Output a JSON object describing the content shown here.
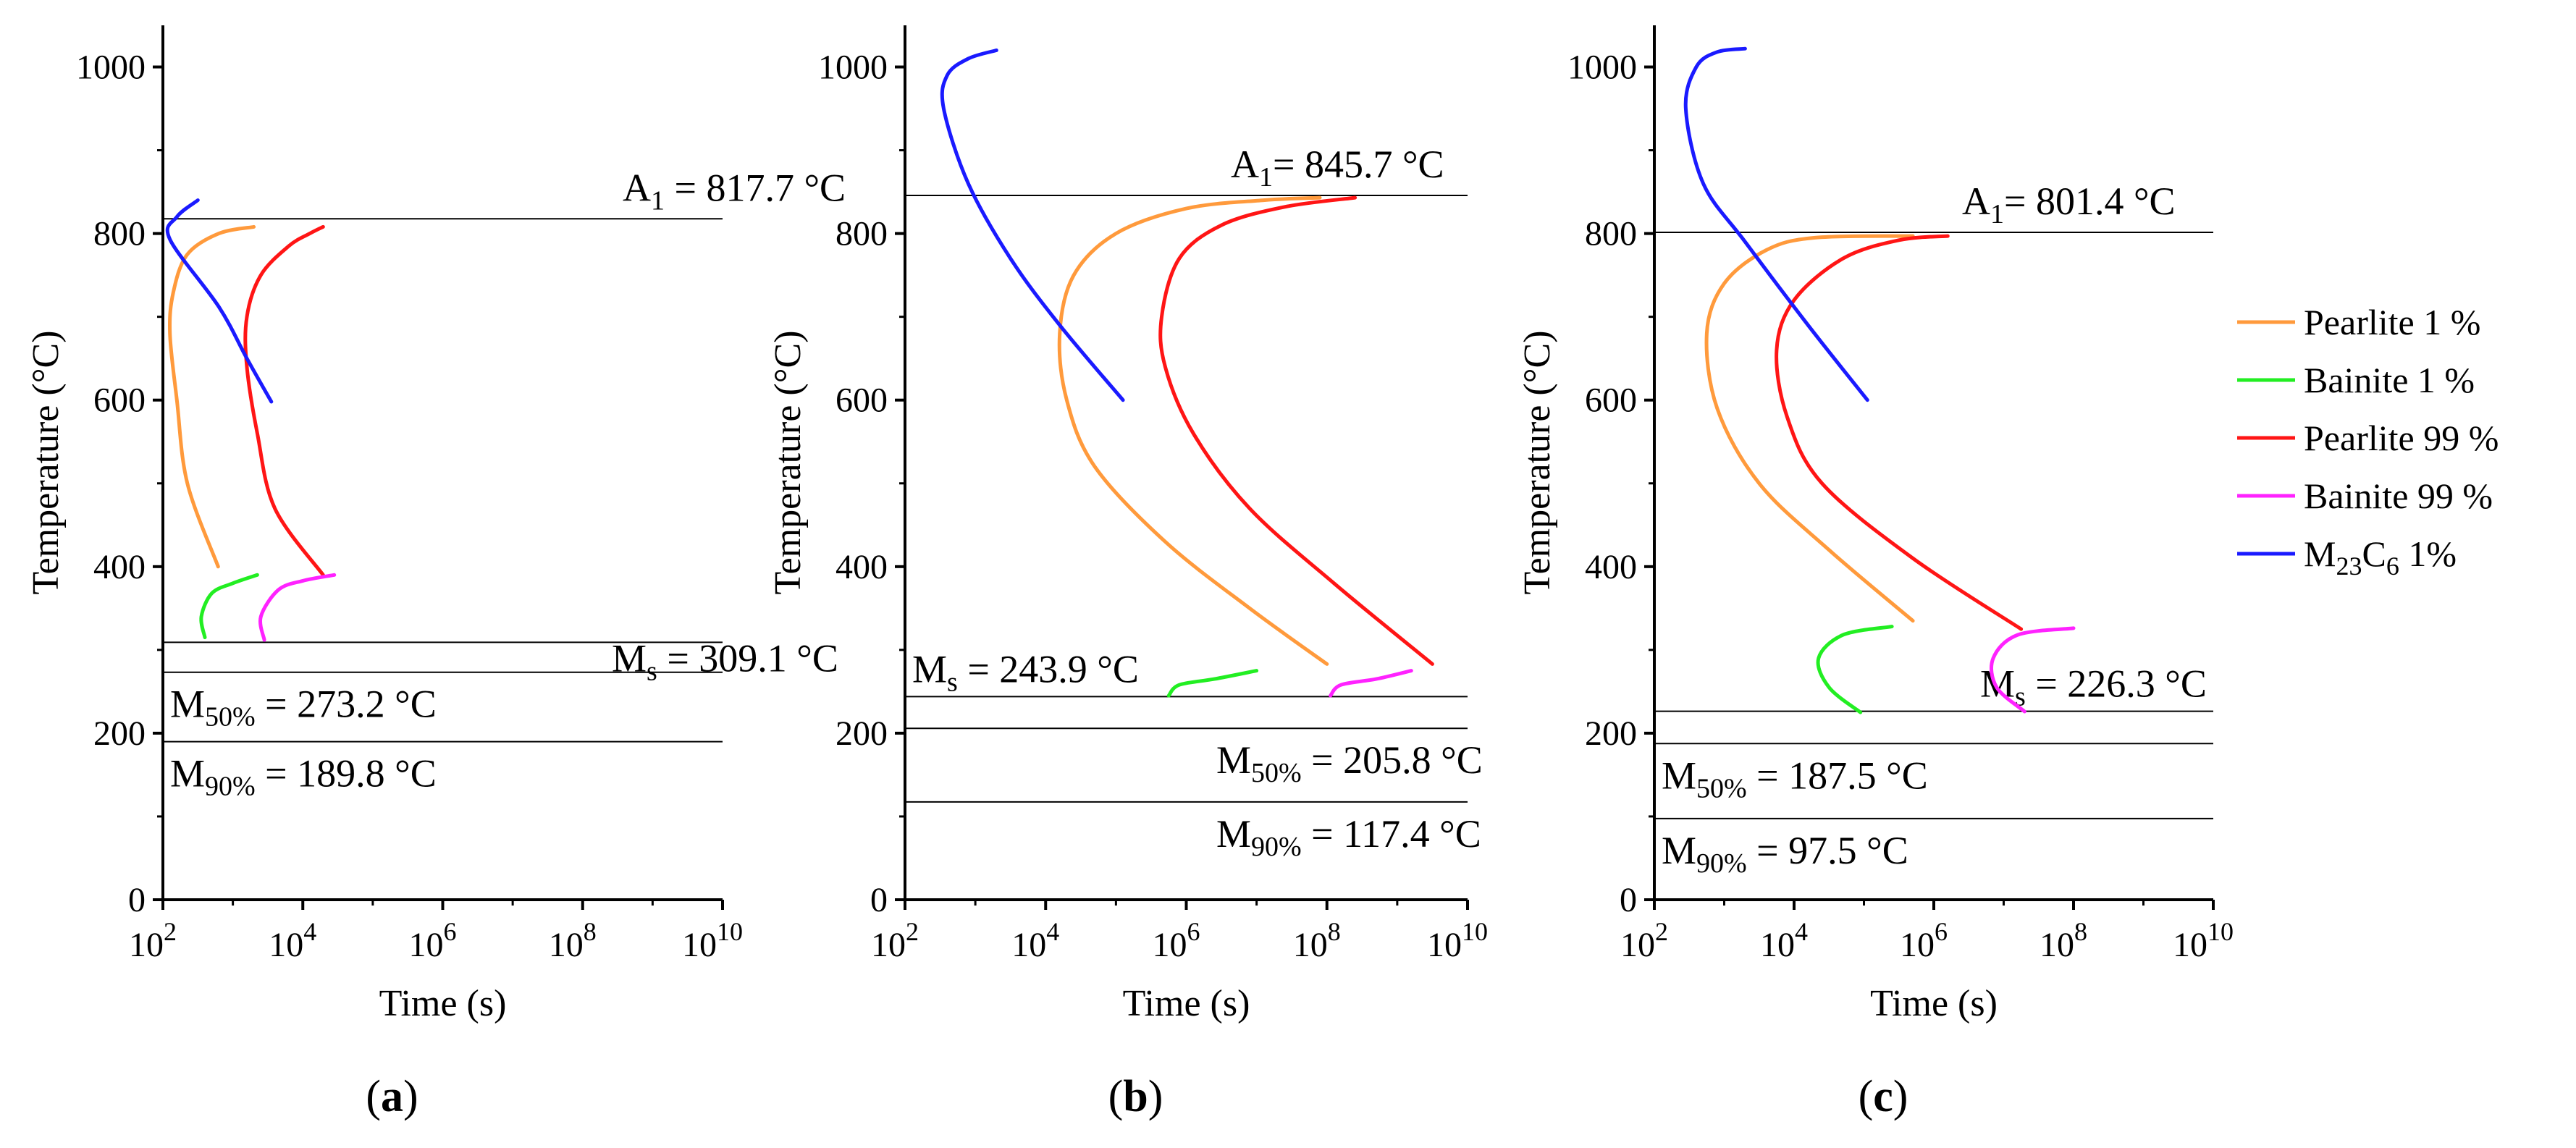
{
  "legend": [
    {
      "key": "pearlite_1",
      "label": "Pearlite 1 %",
      "color": "#ff9a3c"
    },
    {
      "key": "bainite_1",
      "label": "Bainite 1 %",
      "color": "#22ee22"
    },
    {
      "key": "pearlite_99",
      "label": "Pearlite 99 %",
      "color": "#ff1515"
    },
    {
      "key": "bainite_99",
      "label": "Bainite 99 %",
      "color": "#ff22ff"
    },
    {
      "key": "m23c6_1",
      "label": "M23C6 1%",
      "label_base": "M",
      "label_sub1": "23",
      "label_mid": "C",
      "label_sub2": "6",
      "label_tail": " 1%",
      "color": "#1a1aff"
    }
  ],
  "chart_data": [
    {
      "type": "line",
      "panel_label": "(a)",
      "xlabel": "Time (s)",
      "ylabel": "Temperature (°C)",
      "xscale": "log10",
      "xlim": [
        100,
        10000000000
      ],
      "ylim": [
        0,
        1050
      ],
      "xticks": [
        {
          "value": 100,
          "base": "10",
          "exp": "2"
        },
        {
          "value": 10000,
          "base": "10",
          "exp": "4"
        },
        {
          "value": 1000000,
          "base": "10",
          "exp": "6"
        },
        {
          "value": 100000000,
          "base": "10",
          "exp": "8"
        },
        {
          "value": 10000000000,
          "base": "10",
          "exp": "10"
        }
      ],
      "yticks": [
        0,
        200,
        400,
        600,
        800,
        1000
      ],
      "ref_lines": [
        {
          "key": "A1",
          "value": 817.7,
          "label_main": "A",
          "label_sub": "1",
          "label_rest": " = 817.7 °C"
        },
        {
          "key": "Ms",
          "value": 309.1,
          "label_main": "M",
          "label_sub": "s",
          "label_rest": " = 309.1 °C"
        },
        {
          "key": "M50",
          "value": 273.2,
          "label_main": "M",
          "label_sub": "50%",
          "label_rest": " = 273.2 °C"
        },
        {
          "key": "M90",
          "value": 189.8,
          "label_main": "M",
          "label_sub": "90%",
          "label_rest": " = 189.8 °C"
        }
      ],
      "series": [
        {
          "key": "pearlite_1",
          "name": "Pearlite 1 %",
          "points": [
            [
              2.79,
              400
            ],
            [
              2.35,
              500
            ],
            [
              2.2,
              600
            ],
            [
              2.1,
              680
            ],
            [
              2.15,
              730
            ],
            [
              2.35,
              775
            ],
            [
              2.8,
              800
            ],
            [
              3.3,
              808
            ]
          ]
        },
        {
          "key": "pearlite_99",
          "name": "Pearlite 99 %",
          "points": [
            [
              4.29,
              390
            ],
            [
              3.6,
              470
            ],
            [
              3.35,
              560
            ],
            [
              3.2,
              640
            ],
            [
              3.2,
              700
            ],
            [
              3.4,
              750
            ],
            [
              3.8,
              785
            ],
            [
              4.1,
              800
            ],
            [
              4.29,
              808
            ]
          ]
        },
        {
          "key": "bainite_1",
          "name": "Bainite 1 %",
          "points": [
            [
              2.6,
              315
            ],
            [
              2.55,
              340
            ],
            [
              2.7,
              368
            ],
            [
              3.0,
              380
            ],
            [
              3.35,
              390
            ]
          ]
        },
        {
          "key": "bainite_99",
          "name": "Bainite 99 %",
          "points": [
            [
              3.45,
              312
            ],
            [
              3.4,
              340
            ],
            [
              3.65,
              372
            ],
            [
              4.0,
              383
            ],
            [
              4.45,
              390
            ]
          ]
        },
        {
          "key": "m23c6_1",
          "name": "M23C6 1%",
          "points": [
            [
              3.55,
              598
            ],
            [
              3.2,
              650
            ],
            [
              2.8,
              712
            ],
            [
              2.1,
              793
            ],
            [
              2.2,
              820
            ],
            [
              2.5,
              840
            ]
          ]
        }
      ]
    },
    {
      "type": "line",
      "panel_label": "(b)",
      "xlabel": "Time (s)",
      "ylabel": "Temperature (°C)",
      "xscale": "log10",
      "xlim": [
        100,
        10000000000
      ],
      "ylim": [
        0,
        1050
      ],
      "xticks": [
        {
          "value": 100,
          "base": "10",
          "exp": "2"
        },
        {
          "value": 10000,
          "base": "10",
          "exp": "4"
        },
        {
          "value": 1000000,
          "base": "10",
          "exp": "6"
        },
        {
          "value": 100000000,
          "base": "10",
          "exp": "8"
        },
        {
          "value": 10000000000,
          "base": "10",
          "exp": "10"
        }
      ],
      "yticks": [
        0,
        200,
        400,
        600,
        800,
        1000
      ],
      "ref_lines": [
        {
          "key": "A1",
          "value": 845.7,
          "label_main": "A",
          "label_sub": "1",
          "label_rest": "= 845.7 °C"
        },
        {
          "key": "Ms",
          "value": 243.9,
          "label_main": "M",
          "label_sub": "s",
          "label_rest": " = 243.9 °C"
        },
        {
          "key": "M50",
          "value": 205.8,
          "label_main": "M",
          "label_sub": "50%",
          "label_rest": " = 205.8 °C"
        },
        {
          "key": "M90",
          "value": 117.4,
          "label_main": "M",
          "label_sub": "90%",
          "label_rest": " = 117.4 °C"
        }
      ],
      "series": [
        {
          "key": "pearlite_1",
          "name": "Pearlite 1 %",
          "points": [
            [
              8.0,
              283
            ],
            [
              6.9,
              350
            ],
            [
              5.7,
              430
            ],
            [
              4.7,
              520
            ],
            [
              4.3,
              600
            ],
            [
              4.2,
              680
            ],
            [
              4.4,
              750
            ],
            [
              5.0,
              800
            ],
            [
              6.0,
              830
            ],
            [
              7.1,
              840
            ],
            [
              7.9,
              843
            ]
          ]
        },
        {
          "key": "pearlite_99",
          "name": "Pearlite 99 %",
          "points": [
            [
              9.5,
              283
            ],
            [
              8.1,
              380
            ],
            [
              6.9,
              470
            ],
            [
              6.1,
              560
            ],
            [
              5.7,
              640
            ],
            [
              5.65,
              700
            ],
            [
              5.9,
              770
            ],
            [
              6.5,
              810
            ],
            [
              7.4,
              832
            ],
            [
              8.4,
              843
            ]
          ]
        },
        {
          "key": "bainite_1",
          "name": "Bainite 1 %",
          "points": [
            [
              5.75,
              245
            ],
            [
              5.9,
              258
            ],
            [
              6.4,
              265
            ],
            [
              7.0,
              275
            ]
          ]
        },
        {
          "key": "bainite_99",
          "name": "Bainite 99 %",
          "points": [
            [
              8.05,
              245
            ],
            [
              8.2,
              258
            ],
            [
              8.7,
              265
            ],
            [
              9.2,
              275
            ]
          ]
        },
        {
          "key": "m23c6_1",
          "name": "M23C6 1%",
          "points": [
            [
              5.1,
              600
            ],
            [
              4.2,
              690
            ],
            [
              3.5,
              770
            ],
            [
              2.9,
              860
            ],
            [
              2.55,
              950
            ],
            [
              2.6,
              990
            ],
            [
              2.9,
              1010
            ],
            [
              3.3,
              1020
            ]
          ]
        }
      ]
    },
    {
      "type": "line",
      "panel_label": "(c)",
      "xlabel": "Time (s)",
      "ylabel": "Temperature (°C)",
      "xscale": "log10",
      "xlim": [
        100,
        10000000000
      ],
      "ylim": [
        0,
        1050
      ],
      "xticks": [
        {
          "value": 100,
          "base": "10",
          "exp": "2"
        },
        {
          "value": 10000,
          "base": "10",
          "exp": "4"
        },
        {
          "value": 1000000,
          "base": "10",
          "exp": "6"
        },
        {
          "value": 100000000,
          "base": "10",
          "exp": "8"
        },
        {
          "value": 10000000000,
          "base": "10",
          "exp": "10"
        }
      ],
      "yticks": [
        0,
        200,
        400,
        600,
        800,
        1000
      ],
      "ref_lines": [
        {
          "key": "A1",
          "value": 801.4,
          "label_main": "A",
          "label_sub": "1",
          "label_rest": "= 801.4 °C"
        },
        {
          "key": "Ms",
          "value": 226.3,
          "label_main": "M",
          "label_sub": "s",
          "label_rest": " = 226.3 °C"
        },
        {
          "key": "M50",
          "value": 187.5,
          "label_main": "M",
          "label_sub": "50%",
          "label_rest": " = 187.5 °C"
        },
        {
          "key": "M90",
          "value": 97.5,
          "label_main": "M",
          "label_sub": "90%",
          "label_rest": " = 97.5 °C"
        }
      ],
      "series": [
        {
          "key": "pearlite_1",
          "name": "Pearlite 1 %",
          "points": [
            [
              5.7,
              335
            ],
            [
              4.5,
              420
            ],
            [
              3.5,
              500
            ],
            [
              2.9,
              590
            ],
            [
              2.75,
              680
            ],
            [
              3.0,
              740
            ],
            [
              3.6,
              780
            ],
            [
              4.3,
              795
            ],
            [
              5.7,
              797
            ]
          ]
        },
        {
          "key": "pearlite_99",
          "name": "Pearlite 99 %",
          "points": [
            [
              7.25,
              325
            ],
            [
              5.7,
              410
            ],
            [
              4.4,
              500
            ],
            [
              3.9,
              580
            ],
            [
              3.75,
              660
            ],
            [
              4.0,
              720
            ],
            [
              4.7,
              770
            ],
            [
              5.5,
              792
            ],
            [
              6.2,
              797
            ]
          ]
        },
        {
          "key": "bainite_1",
          "name": "Bainite 1 %",
          "points": [
            [
              4.95,
              225
            ],
            [
              4.5,
              255
            ],
            [
              4.35,
              290
            ],
            [
              4.7,
              318
            ],
            [
              5.4,
              328
            ]
          ]
        },
        {
          "key": "bainite_99",
          "name": "Bainite 99 %",
          "points": [
            [
              7.3,
              226
            ],
            [
              6.9,
              255
            ],
            [
              6.85,
              290
            ],
            [
              7.2,
              318
            ],
            [
              8.0,
              326
            ]
          ]
        },
        {
          "key": "m23c6_1",
          "name": "M23C6 1%",
          "points": [
            [
              5.05,
              600
            ],
            [
              4.2,
              690
            ],
            [
              3.3,
              790
            ],
            [
              2.7,
              860
            ],
            [
              2.45,
              950
            ],
            [
              2.6,
              1000
            ],
            [
              2.9,
              1018
            ],
            [
              3.3,
              1022
            ]
          ]
        }
      ]
    }
  ]
}
